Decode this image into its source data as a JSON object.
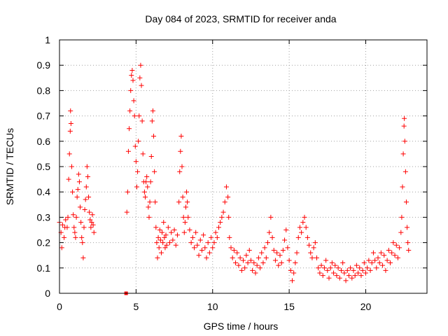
{
  "chart_data": {
    "type": "scatter",
    "title": "Day 084 of 2023, SRMTID for receiver anda",
    "xlabel": "GPS time / hours",
    "ylabel": "SRMTID / TECUs",
    "xlim": [
      0,
      24
    ],
    "ylim": [
      0,
      1
    ],
    "xticks": [
      0,
      5,
      10,
      15,
      20
    ],
    "xtick_labels": [
      "0",
      "5",
      "10",
      "15",
      "20"
    ],
    "yticks": [
      0,
      0.1,
      0.2,
      0.3,
      0.4,
      0.5,
      0.6,
      0.7,
      0.8,
      0.9,
      1
    ],
    "ytick_labels": [
      "0",
      "0.1",
      "0.2",
      "0.3",
      "0.4",
      "0.5",
      "0.6",
      "0.7",
      "0.8",
      "0.9",
      "1"
    ],
    "grid": true,
    "marker": "+",
    "color": "#ff0000",
    "outlier_point": {
      "x": 4.35,
      "y": 0.0
    },
    "series": [
      {
        "name": "SRMTID",
        "points": [
          [
            0.0,
            0.28
          ],
          [
            0.1,
            0.24
          ],
          [
            0.15,
            0.18
          ],
          [
            0.2,
            0.27
          ],
          [
            0.3,
            0.22
          ],
          [
            0.35,
            0.26
          ],
          [
            0.4,
            0.29
          ],
          [
            0.5,
            0.26
          ],
          [
            0.55,
            0.3
          ],
          [
            0.6,
            0.45
          ],
          [
            0.65,
            0.55
          ],
          [
            0.7,
            0.64
          ],
          [
            0.72,
            0.72
          ],
          [
            0.75,
            0.67
          ],
          [
            0.8,
            0.5
          ],
          [
            0.85,
            0.4
          ],
          [
            0.9,
            0.31
          ],
          [
            0.95,
            0.26
          ],
          [
            1.0,
            0.24
          ],
          [
            1.05,
            0.22
          ],
          [
            1.1,
            0.3
          ],
          [
            1.15,
            0.38
          ],
          [
            1.2,
            0.41
          ],
          [
            1.25,
            0.47
          ],
          [
            1.3,
            0.44
          ],
          [
            1.35,
            0.34
          ],
          [
            1.4,
            0.28
          ],
          [
            1.45,
            0.22
          ],
          [
            1.5,
            0.2
          ],
          [
            1.55,
            0.14
          ],
          [
            1.6,
            0.26
          ],
          [
            1.65,
            0.33
          ],
          [
            1.7,
            0.37
          ],
          [
            1.75,
            0.42
          ],
          [
            1.8,
            0.5
          ],
          [
            1.85,
            0.46
          ],
          [
            1.9,
            0.38
          ],
          [
            1.95,
            0.32
          ],
          [
            2.0,
            0.29
          ],
          [
            2.05,
            0.26
          ],
          [
            2.1,
            0.28
          ],
          [
            2.15,
            0.31
          ],
          [
            2.2,
            0.27
          ],
          [
            2.25,
            0.24
          ],
          [
            4.4,
            0.32
          ],
          [
            4.45,
            0.4
          ],
          [
            4.5,
            0.56
          ],
          [
            4.55,
            0.65
          ],
          [
            4.6,
            0.72
          ],
          [
            4.65,
            0.8
          ],
          [
            4.7,
            0.86
          ],
          [
            4.75,
            0.88
          ],
          [
            4.8,
            0.84
          ],
          [
            4.85,
            0.76
          ],
          [
            4.9,
            0.7
          ],
          [
            4.95,
            0.58
          ],
          [
            5.0,
            0.52
          ],
          [
            5.05,
            0.42
          ],
          [
            5.1,
            0.48
          ],
          [
            5.15,
            0.6
          ],
          [
            5.2,
            0.7
          ],
          [
            5.25,
            0.85
          ],
          [
            5.3,
            0.9
          ],
          [
            5.35,
            0.82
          ],
          [
            5.4,
            0.68
          ],
          [
            5.45,
            0.55
          ],
          [
            5.5,
            0.44
          ],
          [
            5.55,
            0.4
          ],
          [
            5.6,
            0.38
          ],
          [
            5.65,
            0.44
          ],
          [
            5.7,
            0.46
          ],
          [
            5.75,
            0.42
          ],
          [
            5.8,
            0.34
          ],
          [
            5.85,
            0.3
          ],
          [
            5.9,
            0.36
          ],
          [
            5.95,
            0.44
          ],
          [
            6.0,
            0.54
          ],
          [
            6.05,
            0.68
          ],
          [
            6.1,
            0.72
          ],
          [
            6.15,
            0.62
          ],
          [
            6.2,
            0.48
          ],
          [
            6.25,
            0.36
          ],
          [
            6.3,
            0.26
          ],
          [
            6.35,
            0.2
          ],
          [
            6.4,
            0.14
          ],
          [
            6.45,
            0.22
          ],
          [
            6.5,
            0.18
          ],
          [
            6.55,
            0.25
          ],
          [
            6.6,
            0.21
          ],
          [
            6.65,
            0.16
          ],
          [
            6.7,
            0.24
          ],
          [
            6.75,
            0.2
          ],
          [
            6.8,
            0.28
          ],
          [
            6.85,
            0.22
          ],
          [
            6.9,
            0.18
          ],
          [
            6.95,
            0.23
          ],
          [
            7.0,
            0.19
          ],
          [
            7.1,
            0.26
          ],
          [
            7.2,
            0.2
          ],
          [
            7.3,
            0.24
          ],
          [
            7.4,
            0.21
          ],
          [
            7.5,
            0.25
          ],
          [
            7.6,
            0.19
          ],
          [
            7.7,
            0.23
          ],
          [
            7.8,
            0.36
          ],
          [
            7.85,
            0.48
          ],
          [
            7.9,
            0.56
          ],
          [
            7.95,
            0.62
          ],
          [
            8.0,
            0.5
          ],
          [
            8.05,
            0.38
          ],
          [
            8.1,
            0.3
          ],
          [
            8.15,
            0.24
          ],
          [
            8.2,
            0.28
          ],
          [
            8.25,
            0.34
          ],
          [
            8.3,
            0.4
          ],
          [
            8.35,
            0.36
          ],
          [
            8.4,
            0.3
          ],
          [
            8.5,
            0.25
          ],
          [
            8.6,
            0.2
          ],
          [
            8.7,
            0.22
          ],
          [
            8.8,
            0.18
          ],
          [
            8.9,
            0.24
          ],
          [
            9.0,
            0.19
          ],
          [
            9.1,
            0.15
          ],
          [
            9.2,
            0.21
          ],
          [
            9.3,
            0.17
          ],
          [
            9.4,
            0.23
          ],
          [
            9.5,
            0.18
          ],
          [
            9.6,
            0.14
          ],
          [
            9.7,
            0.2
          ],
          [
            9.8,
            0.16
          ],
          [
            9.9,
            0.22
          ],
          [
            10.0,
            0.18
          ],
          [
            10.1,
            0.2
          ],
          [
            10.2,
            0.24
          ],
          [
            10.3,
            0.22
          ],
          [
            10.4,
            0.26
          ],
          [
            10.5,
            0.28
          ],
          [
            10.6,
            0.3
          ],
          [
            10.7,
            0.32
          ],
          [
            10.8,
            0.36
          ],
          [
            10.9,
            0.42
          ],
          [
            11.0,
            0.38
          ],
          [
            11.05,
            0.3
          ],
          [
            11.1,
            0.22
          ],
          [
            11.2,
            0.18
          ],
          [
            11.3,
            0.14
          ],
          [
            11.4,
            0.17
          ],
          [
            11.5,
            0.12
          ],
          [
            11.6,
            0.16
          ],
          [
            11.7,
            0.11
          ],
          [
            11.8,
            0.14
          ],
          [
            11.9,
            0.09
          ],
          [
            12.0,
            0.13
          ],
          [
            12.1,
            0.1
          ],
          [
            12.2,
            0.15
          ],
          [
            12.3,
            0.12
          ],
          [
            12.4,
            0.17
          ],
          [
            12.5,
            0.13
          ],
          [
            12.6,
            0.09
          ],
          [
            12.7,
            0.12
          ],
          [
            12.8,
            0.08
          ],
          [
            12.9,
            0.11
          ],
          [
            13.0,
            0.14
          ],
          [
            13.1,
            0.1
          ],
          [
            13.2,
            0.16
          ],
          [
            13.3,
            0.12
          ],
          [
            13.4,
            0.18
          ],
          [
            13.5,
            0.14
          ],
          [
            13.6,
            0.2
          ],
          [
            13.7,
            0.24
          ],
          [
            13.8,
            0.3
          ],
          [
            13.9,
            0.22
          ],
          [
            14.0,
            0.17
          ],
          [
            14.1,
            0.13
          ],
          [
            14.2,
            0.16
          ],
          [
            14.3,
            0.11
          ],
          [
            14.4,
            0.15
          ],
          [
            14.5,
            0.12
          ],
          [
            14.6,
            0.17
          ],
          [
            14.7,
            0.21
          ],
          [
            14.8,
            0.25
          ],
          [
            14.9,
            0.18
          ],
          [
            15.0,
            0.13
          ],
          [
            15.1,
            0.09
          ],
          [
            15.2,
            0.05
          ],
          [
            15.3,
            0.08
          ],
          [
            15.4,
            0.12
          ],
          [
            15.5,
            0.16
          ],
          [
            15.6,
            0.22
          ],
          [
            15.7,
            0.26
          ],
          [
            15.8,
            0.24
          ],
          [
            15.9,
            0.28
          ],
          [
            16.0,
            0.3
          ],
          [
            16.1,
            0.26
          ],
          [
            16.2,
            0.22
          ],
          [
            16.3,
            0.19
          ],
          [
            16.4,
            0.16
          ],
          [
            16.5,
            0.14
          ],
          [
            16.6,
            0.18
          ],
          [
            16.7,
            0.2
          ],
          [
            16.8,
            0.14
          ],
          [
            16.9,
            0.1
          ],
          [
            17.0,
            0.08
          ],
          [
            17.1,
            0.11
          ],
          [
            17.2,
            0.07
          ],
          [
            17.3,
            0.1
          ],
          [
            17.4,
            0.13
          ],
          [
            17.5,
            0.09
          ],
          [
            17.6,
            0.06
          ],
          [
            17.7,
            0.1
          ],
          [
            17.8,
            0.12
          ],
          [
            17.9,
            0.08
          ],
          [
            18.0,
            0.11
          ],
          [
            18.1,
            0.07
          ],
          [
            18.2,
            0.1
          ],
          [
            18.3,
            0.06
          ],
          [
            18.4,
            0.09
          ],
          [
            18.5,
            0.12
          ],
          [
            18.6,
            0.08
          ],
          [
            18.7,
            0.05
          ],
          [
            18.8,
            0.09
          ],
          [
            18.9,
            0.07
          ],
          [
            19.0,
            0.1
          ],
          [
            19.1,
            0.06
          ],
          [
            19.2,
            0.09
          ],
          [
            19.3,
            0.07
          ],
          [
            19.4,
            0.11
          ],
          [
            19.5,
            0.08
          ],
          [
            19.6,
            0.1
          ],
          [
            19.7,
            0.07
          ],
          [
            19.8,
            0.09
          ],
          [
            19.9,
            0.12
          ],
          [
            20.0,
            0.08
          ],
          [
            20.1,
            0.1
          ],
          [
            20.2,
            0.13
          ],
          [
            20.3,
            0.09
          ],
          [
            20.4,
            0.12
          ],
          [
            20.5,
            0.16
          ],
          [
            20.6,
            0.13
          ],
          [
            20.7,
            0.1
          ],
          [
            20.8,
            0.14
          ],
          [
            20.9,
            0.12
          ],
          [
            21.0,
            0.16
          ],
          [
            21.1,
            0.11
          ],
          [
            21.2,
            0.15
          ],
          [
            21.3,
            0.09
          ],
          [
            21.4,
            0.13
          ],
          [
            21.5,
            0.17
          ],
          [
            21.6,
            0.12
          ],
          [
            21.7,
            0.16
          ],
          [
            21.8,
            0.2
          ],
          [
            21.9,
            0.15
          ],
          [
            22.0,
            0.19
          ],
          [
            22.1,
            0.14
          ],
          [
            22.2,
            0.18
          ],
          [
            22.3,
            0.24
          ],
          [
            22.35,
            0.3
          ],
          [
            22.4,
            0.42
          ],
          [
            22.45,
            0.55
          ],
          [
            22.5,
            0.66
          ],
          [
            22.52,
            0.69
          ],
          [
            22.55,
            0.6
          ],
          [
            22.6,
            0.48
          ],
          [
            22.65,
            0.36
          ],
          [
            22.7,
            0.26
          ],
          [
            22.75,
            0.2
          ],
          [
            22.8,
            0.17
          ]
        ]
      }
    ]
  }
}
